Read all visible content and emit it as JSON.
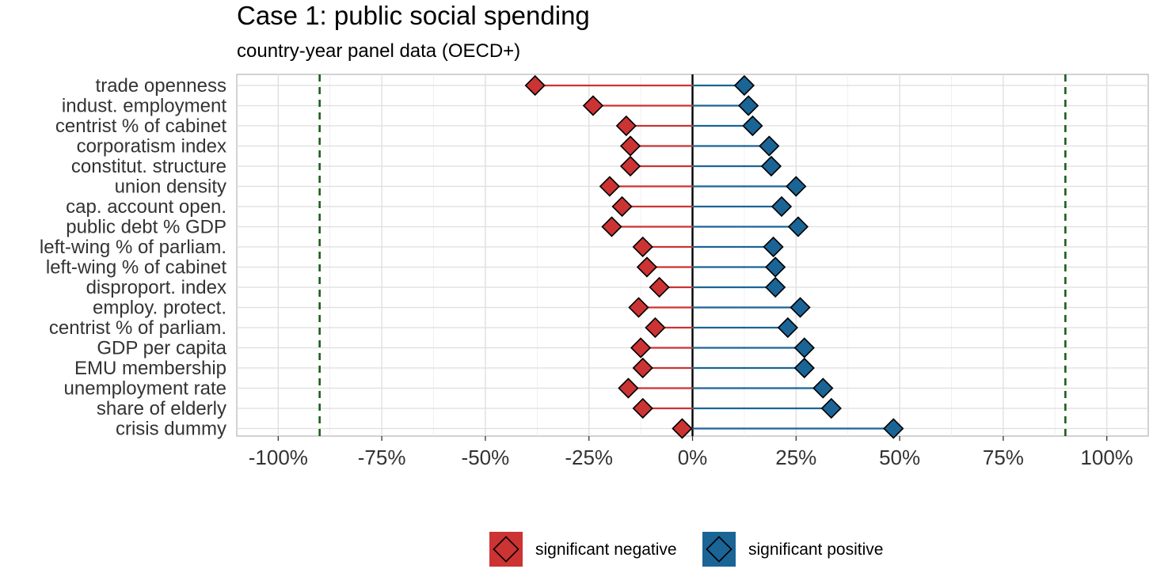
{
  "chart_data": {
    "type": "dumbbell",
    "title": "Case 1: public social spending",
    "subtitle": "country-year panel data (OECD+)",
    "xlim": [
      -110,
      110
    ],
    "x_ticks": [
      -100,
      -75,
      -50,
      -25,
      0,
      25,
      50,
      75,
      100
    ],
    "x_tick_labels": [
      "-100%",
      "-75%",
      "-50%",
      "-25%",
      "0%",
      "25%",
      "50%",
      "75%",
      "100%"
    ],
    "reference_lines": [
      -90,
      90
    ],
    "categories": [
      "trade openness",
      "indust. employment",
      "centrist % of cabinet",
      "corporatism index",
      "constitut. structure",
      "union density",
      "cap. account open.",
      "public debt % GDP",
      "left-wing % of parliam.",
      "left-wing % of cabinet",
      "disproport. index",
      "employ. protect.",
      "centrist % of parliam.",
      "GDP per capita",
      "EMU membership",
      "unemployment rate",
      "share of elderly",
      "crisis dummy"
    ],
    "series": [
      {
        "name": "significant negative",
        "color": "#cc3333",
        "values": [
          -38,
          -24,
          -16,
          -15,
          -15,
          -20,
          -17,
          -19.5,
          -12,
          -11,
          -8,
          -13,
          -9,
          -12.5,
          -12,
          -15.5,
          -12,
          -2.5
        ]
      },
      {
        "name": "significant positive",
        "color": "#1a6496",
        "values": [
          12.5,
          13.5,
          14.5,
          18.5,
          19,
          25,
          21.5,
          25.5,
          19.5,
          20,
          20,
          26,
          23,
          27,
          27,
          31.5,
          33.5,
          48.5
        ]
      }
    ],
    "legend": [
      "significant negative",
      "significant positive"
    ]
  }
}
